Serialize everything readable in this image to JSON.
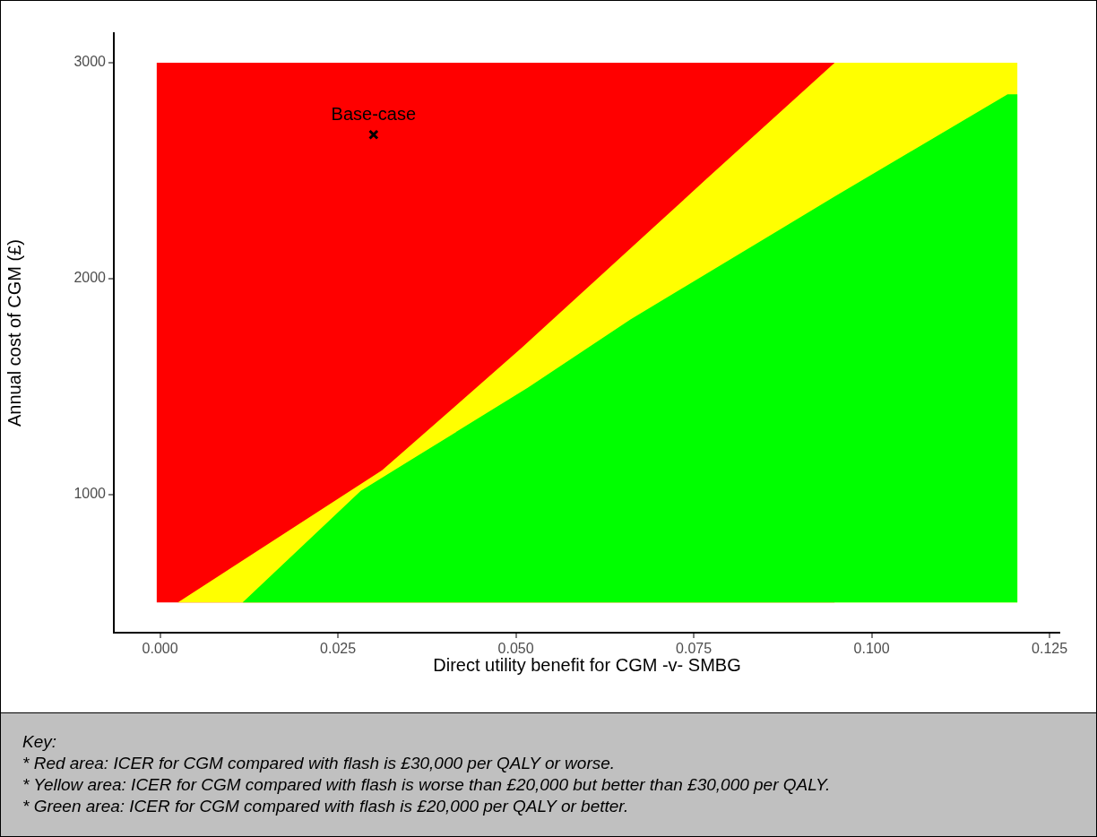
{
  "chart_data": {
    "type": "area",
    "xlabel": "Direct utility benefit for CGM -v- SMBG",
    "ylabel": "Annual cost of CGM (£)",
    "xlim": [
      -0.0065,
      0.1265
    ],
    "xticks": [
      {
        "value": 0,
        "label": "0.000"
      },
      {
        "value": 0.025,
        "label": "0.025"
      },
      {
        "value": 0.05,
        "label": "0.050"
      },
      {
        "value": 0.075,
        "label": "0.075"
      },
      {
        "value": 0.1,
        "label": "0.100"
      },
      {
        "value": 0.125,
        "label": "0.125"
      }
    ],
    "ylim": [
      360,
      3137
    ],
    "yticks": [
      1000,
      2000,
      3000
    ],
    "grid": false,
    "legend": false,
    "series": [
      {
        "type": "scatter",
        "name": "Base-case",
        "color": "#000000",
        "marker": "cross",
        "x": [
          0.03
        ],
        "values": [
          2667
        ]
      },
      {
        "color": "#00ff00",
        "x": [
          -0.0005,
          0.0116,
          0.0282,
          0.0517,
          0.0661,
          0.0948,
          0.1191,
          0.1205
        ],
        "values": [
          500,
          500,
          1017,
          1495,
          1811,
          2380,
          2854,
          2854
        ]
      },
      {
        "color": "#ffff00",
        "x": [
          -0.0005,
          0.0025,
          0.0312,
          0.0509,
          0.0767,
          0.0948,
          0.1205
        ],
        "values": [
          500,
          500,
          1112,
          1682,
          2459,
          3000,
          3000
        ]
      },
      {
        "color": "#ff0000",
        "x": [
          -0.0005,
          0.0948
        ],
        "values": [
          3000,
          3000
        ]
      }
    ],
    "annotations": [
      "Key:",
      "* Red area: ICER for CGM compared with flash is £30,000 per QALY or worse.",
      "* Yellow area: ICER for CGM compared with flash is worse than £20,000 but better than £30,000 per QALY.",
      "* Green area: ICER for CGM compared with flash is £20,000 per QALY or better."
    ]
  }
}
